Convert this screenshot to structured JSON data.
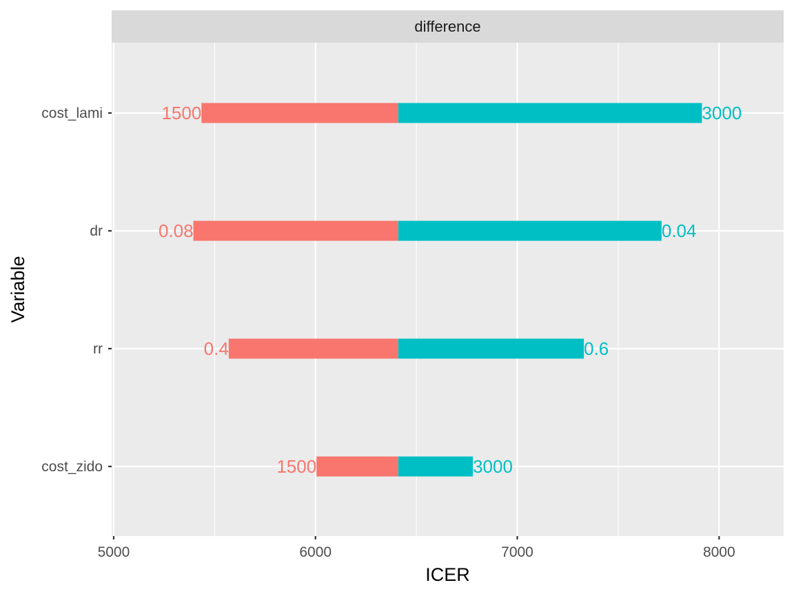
{
  "chart_data": {
    "type": "bar",
    "orientation": "horizontal",
    "facet_label": "difference",
    "xlabel": "ICER",
    "ylabel": "Variable",
    "xlim": [
      4990,
      8320
    ],
    "x_ticks": [
      5000,
      6000,
      7000,
      8000
    ],
    "x_tick_labels": [
      "5000",
      "6000",
      "7000",
      "8000"
    ],
    "base_value": 6410,
    "categories": [
      "cost_lami",
      "dr",
      "rr",
      "cost_zido"
    ],
    "series": [
      {
        "color": "#F8766D",
        "values": [
          5435,
          5395,
          5570,
          6005
        ],
        "labels": [
          "1500",
          "0.08",
          "0.4",
          "1500"
        ]
      },
      {
        "color": "#00BFC4",
        "values": [
          7915,
          7715,
          7330,
          6780
        ],
        "labels": [
          "3000",
          "0.04",
          "0.6",
          "3000"
        ]
      }
    ],
    "grid": true,
    "legend": "none"
  }
}
